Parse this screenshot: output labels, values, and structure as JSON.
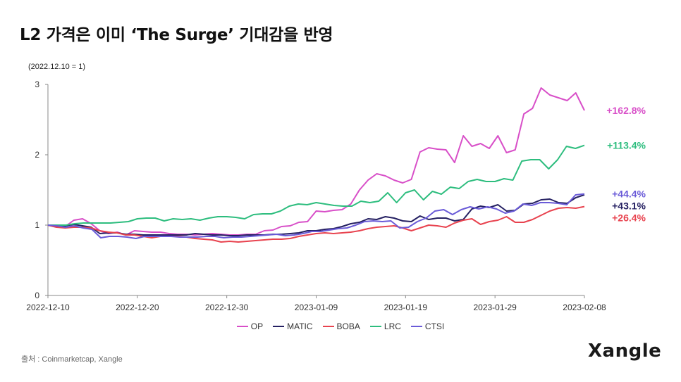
{
  "title": "L2 가격은 이미 ‘The Surge’ 기대감을 반영",
  "base_note": "(2022.12.10 = 1)",
  "source": "출처 : Coinmarketcap, Xangle",
  "logo": "Xangle",
  "chart_data": {
    "type": "line",
    "title": "L2 가격은 이미 ‘The Surge’ 기대감을 반영",
    "ylabel": "(2022.12.10 = 1)",
    "ylim": [
      0,
      3
    ],
    "yticks": [
      "0",
      "1",
      "2",
      "3"
    ],
    "xticks": [
      "2022-12-10",
      "2022-12-20",
      "2022-12-30",
      "2023-01-09",
      "2023-01-19",
      "2023-01-29",
      "2023-02-08"
    ],
    "x_start": "2022-12-10",
    "x_end": "2023-02-08",
    "legend": [
      "OP",
      "MATIC",
      "BOBA",
      "LRC",
      "CTSI"
    ],
    "series": [
      {
        "name": "OP",
        "color": "#d84fc8",
        "end_label": "+162.8%",
        "values": [
          1.0,
          0.97,
          0.98,
          1.07,
          1.09,
          1.02,
          0.92,
          0.88,
          0.9,
          0.86,
          0.92,
          0.91,
          0.9,
          0.9,
          0.88,
          0.87,
          0.87,
          0.86,
          0.87,
          0.88,
          0.87,
          0.86,
          0.86,
          0.87,
          0.87,
          0.92,
          0.93,
          0.98,
          0.99,
          1.04,
          1.05,
          1.2,
          1.19,
          1.21,
          1.22,
          1.3,
          1.5,
          1.64,
          1.73,
          1.7,
          1.64,
          1.6,
          1.65,
          2.04,
          2.1,
          2.08,
          2.07,
          1.89,
          2.27,
          2.12,
          2.16,
          2.09,
          2.27,
          2.03,
          2.07,
          2.58,
          2.66,
          2.95,
          2.85,
          2.81,
          2.77,
          2.88,
          2.63
        ]
      },
      {
        "name": "MATIC",
        "color": "#252062",
        "end_label": "+43.1%",
        "values": [
          1.0,
          0.98,
          0.99,
          1.01,
          0.99,
          0.97,
          0.88,
          0.89,
          0.89,
          0.87,
          0.87,
          0.86,
          0.86,
          0.86,
          0.86,
          0.86,
          0.86,
          0.88,
          0.87,
          0.86,
          0.86,
          0.85,
          0.85,
          0.86,
          0.86,
          0.86,
          0.87,
          0.87,
          0.88,
          0.89,
          0.92,
          0.92,
          0.94,
          0.95,
          0.98,
          1.02,
          1.04,
          1.09,
          1.08,
          1.12,
          1.1,
          1.06,
          1.05,
          1.13,
          1.08,
          1.1,
          1.1,
          1.06,
          1.08,
          1.23,
          1.27,
          1.25,
          1.29,
          1.2,
          1.21,
          1.3,
          1.31,
          1.36,
          1.37,
          1.32,
          1.31,
          1.39,
          1.431
        ]
      },
      {
        "name": "BOBA",
        "color": "#e8434f",
        "end_label": "+26.4%",
        "values": [
          1.0,
          0.97,
          0.96,
          0.97,
          0.97,
          0.96,
          0.92,
          0.9,
          0.89,
          0.86,
          0.86,
          0.84,
          0.82,
          0.84,
          0.84,
          0.84,
          0.83,
          0.81,
          0.8,
          0.79,
          0.76,
          0.77,
          0.76,
          0.77,
          0.78,
          0.79,
          0.8,
          0.8,
          0.81,
          0.84,
          0.86,
          0.88,
          0.89,
          0.88,
          0.89,
          0.9,
          0.92,
          0.95,
          0.97,
          0.98,
          0.99,
          0.96,
          0.92,
          0.96,
          1.0,
          0.99,
          0.97,
          1.03,
          1.07,
          1.09,
          1.01,
          1.05,
          1.07,
          1.12,
          1.04,
          1.04,
          1.08,
          1.14,
          1.2,
          1.24,
          1.25,
          1.24,
          1.264
        ]
      },
      {
        "name": "LRC",
        "color": "#2dbd7e",
        "end_label": "+113.4%",
        "values": [
          1.0,
          1.0,
          1.0,
          1.02,
          1.03,
          1.03,
          1.03,
          1.03,
          1.04,
          1.05,
          1.09,
          1.1,
          1.1,
          1.06,
          1.09,
          1.08,
          1.09,
          1.07,
          1.1,
          1.12,
          1.12,
          1.11,
          1.09,
          1.15,
          1.16,
          1.16,
          1.2,
          1.27,
          1.3,
          1.29,
          1.32,
          1.3,
          1.28,
          1.27,
          1.27,
          1.34,
          1.32,
          1.34,
          1.46,
          1.32,
          1.46,
          1.5,
          1.36,
          1.48,
          1.44,
          1.54,
          1.52,
          1.62,
          1.65,
          1.62,
          1.62,
          1.66,
          1.64,
          1.91,
          1.93,
          1.93,
          1.8,
          1.93,
          2.12,
          2.09,
          2.134
        ]
      },
      {
        "name": "CTSI",
        "color": "#6a5bd8",
        "end_label": "+44.4%",
        "values": [
          1.0,
          0.99,
          0.97,
          0.99,
          0.96,
          0.94,
          0.82,
          0.84,
          0.84,
          0.83,
          0.81,
          0.84,
          0.84,
          0.84,
          0.84,
          0.83,
          0.83,
          0.83,
          0.84,
          0.84,
          0.82,
          0.83,
          0.83,
          0.84,
          0.85,
          0.86,
          0.87,
          0.85,
          0.86,
          0.88,
          0.91,
          0.91,
          0.93,
          0.95,
          0.96,
          1.0,
          1.05,
          1.06,
          1.05,
          1.06,
          0.96,
          0.97,
          1.05,
          1.1,
          1.2,
          1.22,
          1.15,
          1.22,
          1.26,
          1.23,
          1.26,
          1.23,
          1.17,
          1.2,
          1.3,
          1.28,
          1.32,
          1.32,
          1.31,
          1.29,
          1.43,
          1.444
        ]
      }
    ]
  }
}
